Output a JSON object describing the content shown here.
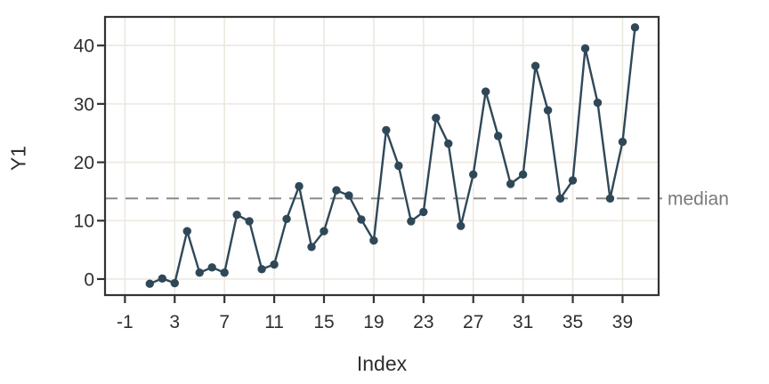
{
  "chart_data": {
    "type": "line",
    "title": "",
    "xlabel": "Index",
    "ylabel": "Y1",
    "legend_position": "none",
    "grid": true,
    "xlim": [
      -2.6,
      41.9
    ],
    "ylim": [
      -2.75,
      44.9
    ],
    "xticks": [
      -1,
      3,
      7,
      11,
      15,
      19,
      23,
      27,
      31,
      35,
      39
    ],
    "yticks": [
      0,
      10,
      20,
      30,
      40
    ],
    "series": [
      {
        "name": "Y1",
        "x": [
          1,
          2,
          3,
          4,
          5,
          6,
          7,
          8,
          9,
          10,
          11,
          12,
          13,
          14,
          15,
          16,
          17,
          18,
          19,
          20,
          21,
          22,
          23,
          24,
          25,
          26,
          27,
          28,
          29,
          30,
          31,
          32,
          33,
          34,
          35,
          36,
          37,
          38,
          39,
          40
        ],
        "y": [
          -0.8,
          0.1,
          -0.7,
          8.2,
          1.1,
          2.0,
          1.1,
          11.0,
          9.9,
          1.7,
          2.5,
          10.3,
          15.9,
          5.5,
          8.2,
          15.2,
          14.3,
          10.2,
          6.6,
          25.5,
          19.4,
          9.9,
          11.5,
          27.6,
          23.2,
          9.1,
          17.9,
          32.1,
          24.5,
          16.3,
          17.9,
          36.5,
          28.9,
          13.8,
          16.9,
          39.5,
          30.2,
          13.8,
          23.5,
          43.1
        ]
      }
    ],
    "annotations": {
      "median_line": {
        "value": 13.8,
        "label": "median",
        "style": "dashed"
      }
    },
    "colors": {
      "series": "#2f4858",
      "grid": "#ece8e0",
      "axis": "#333333",
      "tick_text": "#2e2e2e",
      "median_line": "#8a8a8a",
      "median_text": "#7a7a7a",
      "background": "#ffffff"
    }
  }
}
